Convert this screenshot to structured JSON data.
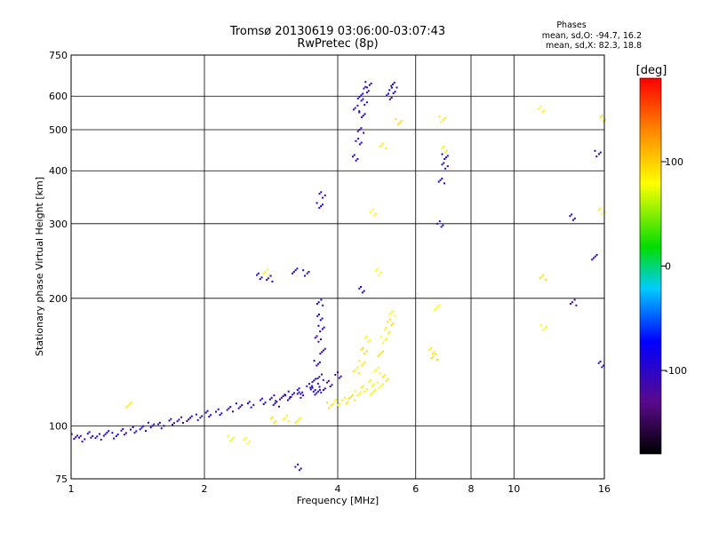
{
  "chart_data": {
    "type": "scatter",
    "title": "Tromsø 20130619 03:06:00-03:07:43",
    "subtitle": "RwPretec (8p)",
    "xlabel": "Frequency [MHz]",
    "ylabel": "Stationary phase Virtual Height [km]",
    "xscale": "log",
    "yscale": "log",
    "xlim": [
      1,
      16
    ],
    "ylim": [
      75,
      750
    ],
    "xticks": [
      1,
      2,
      4,
      6,
      8,
      10,
      16
    ],
    "xtick_labels": [
      "1",
      "2",
      "4",
      "6",
      "8",
      "10",
      "16"
    ],
    "yticks": [
      75,
      100,
      200,
      300,
      400,
      500,
      600,
      750
    ],
    "ytick_labels": [
      "75",
      "100",
      "200",
      "300",
      "400",
      "500",
      "600",
      "750"
    ],
    "grid": true,
    "stats_header": "Phases",
    "stats_lines": [
      "mean, sd,O: -94.7, 16.2",
      "mean, sd,X:  82.3, 18.8"
    ],
    "colorbar": {
      "label": "[deg]",
      "range": [
        -180,
        180
      ],
      "ticks": [
        100,
        0,
        -100
      ],
      "tick_labels": [
        "100",
        "0",
        "-100"
      ],
      "colormap": "rainbow"
    },
    "series": [
      {
        "marker": "O-mode traces",
        "phase_deg": -95,
        "points": [
          [
            1.02,
            94
          ],
          [
            1.06,
            93
          ],
          [
            1.1,
            95
          ],
          [
            1.15,
            94
          ],
          [
            1.2,
            96
          ],
          [
            1.26,
            95
          ],
          [
            1.32,
            97
          ],
          [
            1.38,
            98
          ],
          [
            1.45,
            99
          ],
          [
            1.52,
            100
          ],
          [
            1.6,
            100
          ],
          [
            1.68,
            102
          ],
          [
            1.76,
            103
          ],
          [
            1.85,
            104
          ],
          [
            1.95,
            105
          ],
          [
            2.05,
            107
          ],
          [
            2.15,
            108
          ],
          [
            2.28,
            110
          ],
          [
            2.4,
            111
          ],
          [
            2.55,
            112
          ],
          [
            2.7,
            114
          ],
          [
            2.85,
            116
          ],
          [
            3.0,
            117
          ],
          [
            3.15,
            119
          ],
          [
            3.3,
            121
          ],
          [
            3.45,
            124
          ],
          [
            3.55,
            128
          ],
          [
            3.6,
            140
          ],
          [
            3.62,
            160
          ],
          [
            3.63,
            180
          ],
          [
            3.64,
            195
          ],
          [
            3.6,
            120
          ],
          [
            3.7,
            122
          ],
          [
            3.85,
            126
          ],
          [
            4.0,
            132
          ],
          [
            2.9,
            113
          ],
          [
            3.1,
            116
          ],
          [
            3.3,
            118
          ],
          [
            3.5,
            122
          ],
          [
            3.65,
            130
          ],
          [
            3.7,
            150
          ],
          [
            3.68,
            170
          ],
          [
            4.4,
            430
          ],
          [
            4.45,
            470
          ],
          [
            4.5,
            500
          ],
          [
            4.55,
            540
          ],
          [
            4.6,
            580
          ],
          [
            4.62,
            620
          ],
          [
            4.4,
            560
          ],
          [
            4.5,
            600
          ],
          [
            4.7,
            640
          ],
          [
            5.25,
            600
          ],
          [
            5.3,
            620
          ],
          [
            5.35,
            640
          ],
          [
            3.65,
            330
          ],
          [
            3.7,
            350
          ],
          [
            2.65,
            225
          ],
          [
            2.8,
            222
          ],
          [
            3.2,
            232
          ],
          [
            3.4,
            230
          ],
          [
            4.55,
            210
          ],
          [
            6.8,
            300
          ],
          [
            6.85,
            380
          ],
          [
            7.0,
            430
          ],
          [
            7.0,
            410
          ],
          [
            13.5,
            310
          ],
          [
            13.6,
            195
          ],
          [
            15.2,
            250
          ],
          [
            15.5,
            440
          ],
          [
            15.8,
            140
          ],
          [
            3.25,
            80
          ]
        ]
      },
      {
        "marker": "X-mode traces",
        "phase_deg": 85,
        "points": [
          [
            2.3,
            93
          ],
          [
            2.5,
            92
          ],
          [
            2.85,
            103
          ],
          [
            3.05,
            104
          ],
          [
            3.25,
            103
          ],
          [
            3.85,
            112
          ],
          [
            4.0,
            114
          ],
          [
            4.15,
            115
          ],
          [
            4.3,
            117
          ],
          [
            4.45,
            119
          ],
          [
            4.6,
            122
          ],
          [
            4.75,
            126
          ],
          [
            4.9,
            135
          ],
          [
            5.0,
            148
          ],
          [
            5.1,
            160
          ],
          [
            5.2,
            168
          ],
          [
            5.25,
            176
          ],
          [
            5.3,
            185
          ],
          [
            4.55,
            140
          ],
          [
            4.6,
            150
          ],
          [
            4.65,
            160
          ],
          [
            4.4,
            135
          ],
          [
            4.8,
            120
          ],
          [
            5.0,
            125
          ],
          [
            5.15,
            130
          ],
          [
            4.8,
            320
          ],
          [
            5.05,
            460
          ],
          [
            5.5,
            520
          ],
          [
            4.95,
            230
          ],
          [
            6.5,
            150
          ],
          [
            6.6,
            145
          ],
          [
            6.7,
            190
          ],
          [
            6.9,
            530
          ],
          [
            7.0,
            450
          ],
          [
            11.5,
            560
          ],
          [
            11.6,
            225
          ],
          [
            11.7,
            170
          ],
          [
            15.8,
            320
          ],
          [
            15.8,
            530
          ],
          [
            2.75,
            230
          ],
          [
            1.35,
            112
          ]
        ]
      }
    ]
  }
}
